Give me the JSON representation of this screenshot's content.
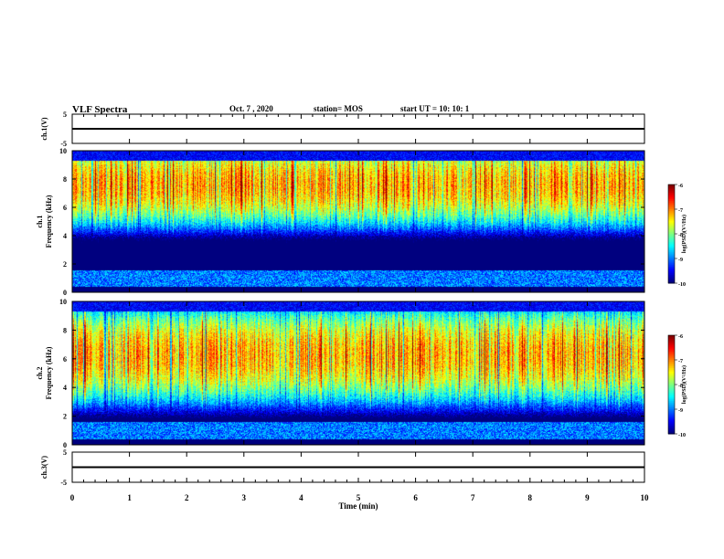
{
  "header": {
    "title": "VLF Spectra",
    "date": "Oct. 7 , 2020",
    "station": "station= MOS",
    "start": "start UT = 10: 10: 1"
  },
  "chart_data": [
    {
      "type": "line",
      "name": "ch1-waveform",
      "ylabel": "ch.1(V)",
      "yticks": [
        "5",
        "-5"
      ],
      "ylim": [
        -5,
        5
      ],
      "x": [
        0,
        10
      ],
      "y": [
        0,
        0
      ]
    },
    {
      "type": "heatmap",
      "name": "ch1-spectrogram",
      "ylabel": "ch.1\nFrequency (kHz)",
      "ylim": [
        0,
        10
      ],
      "yticks": [
        "0",
        "2",
        "4",
        "6",
        "8",
        "10"
      ],
      "xlim": [
        0,
        10
      ],
      "dominant_band_khz": [
        6.5,
        8.8
      ],
      "colorbar": {
        "label": "log(PSD)(V²/Hz)",
        "ticks": [
          "-6",
          "-7",
          "-8",
          "-9",
          "-10"
        ],
        "range": [
          -10,
          -6
        ]
      }
    },
    {
      "type": "heatmap",
      "name": "ch2-spectrogram",
      "ylabel": "ch.2\nFrequency (kHz)",
      "ylim": [
        0,
        10
      ],
      "yticks": [
        "0",
        "2",
        "4",
        "6",
        "8",
        "10"
      ],
      "xlim": [
        0,
        10
      ],
      "dominant_band_khz": [
        4.8,
        7.8
      ],
      "colorbar": {
        "label": "log(PSD)(V²/Hz)",
        "ticks": [
          "-6",
          "-7",
          "-8",
          "-9",
          "-10"
        ],
        "range": [
          -10,
          -6
        ]
      }
    },
    {
      "type": "line",
      "name": "ch3-waveform",
      "ylabel": "ch.3(V)",
      "yticks": [
        "5",
        "-5"
      ],
      "ylim": [
        -5,
        5
      ],
      "x": [
        0,
        10
      ],
      "y": [
        0,
        0
      ]
    }
  ],
  "xaxis": {
    "label": "Time (min)",
    "ticks": [
      "0",
      "1",
      "2",
      "3",
      "4",
      "5",
      "6",
      "7",
      "8",
      "9",
      "10"
    ]
  },
  "colors": {
    "jet": [
      "#00007f",
      "#0000ff",
      "#007fff",
      "#00ffff",
      "#7fff7f",
      "#ffff00",
      "#ff7f00",
      "#ff0000",
      "#7f0000"
    ]
  }
}
